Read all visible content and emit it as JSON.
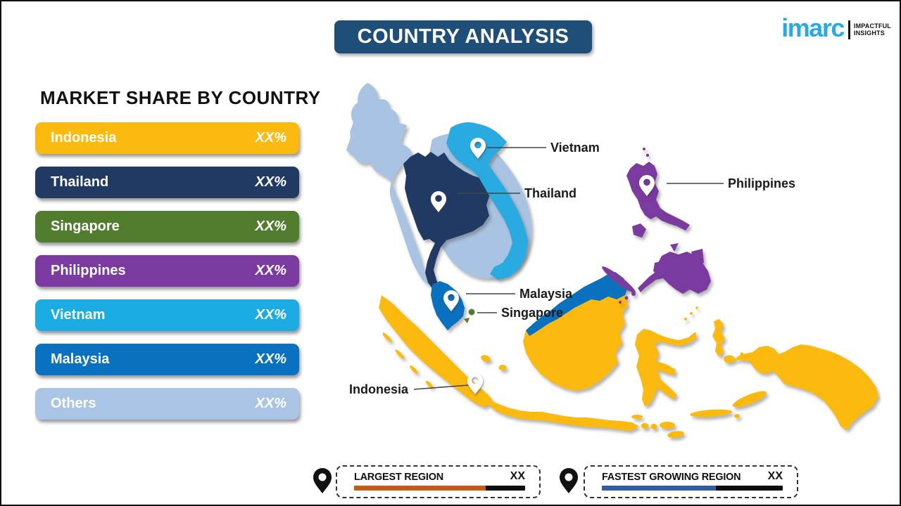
{
  "title": "COUNTRY ANALYSIS",
  "title_bg": "#1F4E79",
  "logo": {
    "brand": "imarc",
    "brand_color": "#29ABE2",
    "tagline_line1": "IMPACTFUL",
    "tagline_line2": "INSIGHTS"
  },
  "market_share": {
    "heading": "MARKET SHARE BY COUNTRY",
    "items": [
      {
        "label": "Indonesia",
        "value": "XX%",
        "color": "#FBBA0D"
      },
      {
        "label": "Thailand",
        "value": "XX%",
        "color": "#213A64"
      },
      {
        "label": "Singapore",
        "value": "XX%",
        "color": "#527C2E"
      },
      {
        "label": "Philippines",
        "value": "XX%",
        "color": "#7B3AA0"
      },
      {
        "label": "Vietnam",
        "value": "XX%",
        "color": "#1BACE4"
      },
      {
        "label": "Malaysia",
        "value": "XX%",
        "color": "#0A71C0"
      },
      {
        "label": "Others",
        "value": "XX%",
        "color": "#A9C4E5"
      }
    ]
  },
  "map": {
    "colors": {
      "neighbor_light": "#A9C4E2",
      "thailand": "#213A64",
      "vietnam": "#29ABE2",
      "malaysia": "#0A71C0",
      "indonesia": "#FBBA0D",
      "philippines": "#7B3AA0",
      "singapore": "#527C2E"
    },
    "labels": [
      {
        "name": "Vietnam"
      },
      {
        "name": "Thailand"
      },
      {
        "name": "Philippines"
      },
      {
        "name": "Malaysia"
      },
      {
        "name": "Singapore"
      },
      {
        "name": "Indonesia"
      }
    ]
  },
  "legend": [
    {
      "label": "LARGEST REGION",
      "value": "XX",
      "bar_color": "#C45B11",
      "fill_width": "77%"
    },
    {
      "label": "FASTEST GROWING REGION",
      "value": "XX",
      "bar_color": "#2E5DA6",
      "fill_width": "63%"
    }
  ]
}
